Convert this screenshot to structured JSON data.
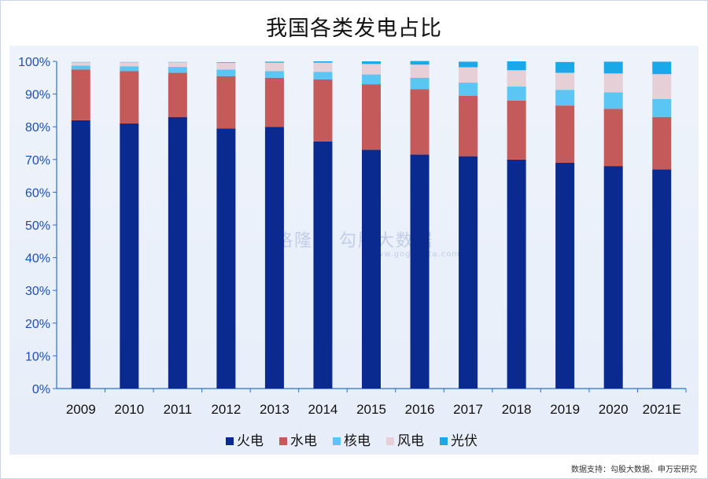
{
  "page": {
    "title": "我国各类发电占比",
    "source_note": "数据支持：勾股大数据、申万宏研究"
  },
  "watermark": {
    "text": "格隆汇  勾股大数据",
    "sub": "www.gogudata.com"
  },
  "colors": {
    "background": "#e9eff9",
    "axis": "#2f6fd0",
    "tick_text": "#1f4fb3"
  },
  "chart_data": {
    "type": "bar",
    "stacked": true,
    "title": "我国各类发电占比",
    "categories": [
      "2009",
      "2010",
      "2011",
      "2012",
      "2013",
      "2014",
      "2015",
      "2016",
      "2017",
      "2018",
      "2019",
      "2020",
      "2021E"
    ],
    "y_tick_labels": [
      "0%",
      "10%",
      "20%",
      "30%",
      "40%",
      "50%",
      "60%",
      "70%",
      "80%",
      "90%",
      "100%"
    ],
    "ylim": [
      0,
      100
    ],
    "grid": false,
    "legend_position": "bottom",
    "series": [
      {
        "name": "火电",
        "color": "#0a2a8f",
        "values": [
          82,
          81,
          83,
          79.5,
          80,
          75.5,
          73,
          71.5,
          71,
          70,
          69,
          68,
          67
        ]
      },
      {
        "name": "水电",
        "color": "#c45a5a",
        "values": [
          15.5,
          16,
          13.5,
          16,
          15,
          19,
          20,
          20,
          18.5,
          18,
          17.5,
          17.5,
          16
        ]
      },
      {
        "name": "核电",
        "color": "#5bc6f3",
        "values": [
          1.2,
          1.5,
          1.8,
          2,
          2,
          2.3,
          3,
          3.5,
          4,
          4.3,
          4.8,
          5,
          5.5
        ]
      },
      {
        "name": "风电",
        "color": "#e6cfd6",
        "values": [
          1,
          1.2,
          1.4,
          2,
          2.6,
          2.8,
          3.2,
          4,
          4.7,
          5,
          5.2,
          5.8,
          7.6
        ]
      },
      {
        "name": "光伏",
        "color": "#19a9e9",
        "values": [
          0.1,
          0.1,
          0.1,
          0.2,
          0.3,
          0.4,
          0.8,
          1.1,
          1.7,
          2.7,
          3.3,
          3.6,
          3.8
        ]
      }
    ]
  }
}
